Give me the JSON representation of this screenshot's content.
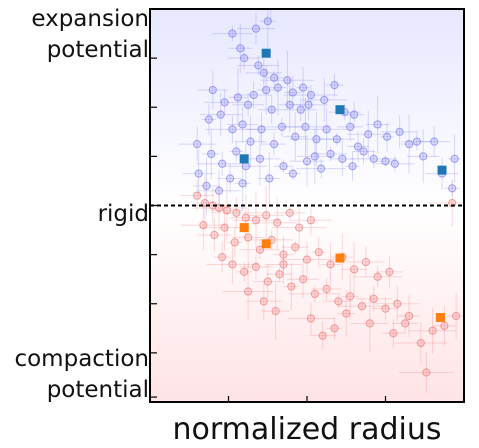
{
  "chart_data": {
    "type": "scatter",
    "xlabel": "normalized radius",
    "ylim": [
      -4,
      4
    ],
    "xlim": [
      0,
      4
    ],
    "x_ticks": [
      1,
      2,
      3
    ],
    "y_ticks": [
      -3.9,
      -3,
      -2,
      -1,
      0,
      1,
      2,
      3,
      4
    ],
    "y_annotations": {
      "top": [
        "expansion",
        "potential"
      ],
      "middle": "rigid",
      "bottom": [
        "compaction",
        "potential"
      ]
    },
    "reference_line": {
      "y": 0,
      "style": "dashed"
    },
    "series": [
      {
        "color": "#7b7bef",
        "marker": "open-circle",
        "points": [
          [
            1.3,
            4.4
          ],
          [
            1.44,
            4.3
          ],
          [
            1.54,
            4.1
          ],
          [
            1.5,
            3.75
          ],
          [
            1.35,
            3.6
          ],
          [
            1.15,
            3.2
          ],
          [
            1.05,
            3.5
          ],
          [
            1.2,
            3.0
          ],
          [
            1.38,
            2.85
          ],
          [
            1.45,
            2.7
          ],
          [
            1.58,
            2.6
          ],
          [
            1.75,
            2.55
          ],
          [
            1.82,
            2.3
          ],
          [
            2.05,
            2.25
          ],
          [
            0.8,
            2.35
          ],
          [
            0.95,
            2.1
          ],
          [
            1.12,
            2.2
          ],
          [
            1.25,
            2.05
          ],
          [
            1.32,
            2.25
          ],
          [
            1.48,
            2.35
          ],
          [
            1.55,
            1.95
          ],
          [
            1.63,
            2.4
          ],
          [
            1.78,
            2.05
          ],
          [
            1.92,
            1.95
          ],
          [
            2.02,
            2.05
          ],
          [
            2.22,
            2.15
          ],
          [
            2.35,
            2.45
          ],
          [
            2.48,
            1.9
          ],
          [
            0.75,
            1.75
          ],
          [
            0.9,
            1.85
          ],
          [
            1.05,
            1.55
          ],
          [
            1.18,
            1.65
          ],
          [
            1.28,
            1.3
          ],
          [
            1.42,
            1.55
          ],
          [
            1.58,
            1.25
          ],
          [
            1.68,
            1.6
          ],
          [
            1.85,
            1.4
          ],
          [
            1.98,
            1.6
          ],
          [
            2.12,
            1.35
          ],
          [
            2.25,
            1.55
          ],
          [
            2.38,
            1.35
          ],
          [
            2.55,
            1.6
          ],
          [
            2.65,
            1.2
          ],
          [
            2.78,
            1.45
          ],
          [
            2.9,
            1.65
          ],
          [
            3.02,
            1.4
          ],
          [
            3.18,
            1.5
          ],
          [
            3.3,
            1.25
          ],
          [
            3.48,
            1.0
          ],
          [
            0.6,
            1.25
          ],
          [
            0.78,
            1.05
          ],
          [
            0.92,
            0.85
          ],
          [
            1.1,
            1.1
          ],
          [
            1.22,
            0.8
          ],
          [
            1.4,
            0.95
          ],
          [
            1.52,
            0.55
          ],
          [
            1.7,
            0.8
          ],
          [
            1.82,
            0.65
          ],
          [
            2.0,
            0.9
          ],
          [
            2.18,
            0.75
          ],
          [
            2.3,
            1.05
          ],
          [
            2.45,
            0.95
          ],
          [
            2.58,
            0.8
          ],
          [
            2.72,
            1.1
          ],
          [
            2.85,
            0.95
          ],
          [
            3.0,
            0.9
          ],
          [
            3.12,
            0.85
          ],
          [
            3.4,
            1.3
          ],
          [
            3.72,
            0.65
          ],
          [
            3.88,
            0.95
          ],
          [
            0.62,
            0.65
          ],
          [
            0.72,
            0.4
          ],
          [
            0.88,
            0.3
          ],
          [
            1.02,
            0.55
          ],
          [
            1.18,
            0.45
          ],
          [
            3.85,
            0.35
          ],
          [
            2.6,
            1.85
          ],
          [
            1.95,
            2.4
          ],
          [
            3.62,
            1.3
          ],
          [
            2.1,
            1.0
          ]
        ]
      },
      {
        "color": "#f07878",
        "marker": "open-circle",
        "points": [
          [
            0.6,
            0.2
          ],
          [
            0.7,
            0.05
          ],
          [
            0.8,
            0.0
          ],
          [
            0.88,
            -0.05
          ],
          [
            0.98,
            -0.1
          ],
          [
            1.1,
            -0.15
          ],
          [
            1.22,
            -0.25
          ],
          [
            1.35,
            -0.3
          ],
          [
            1.48,
            -0.2
          ],
          [
            1.62,
            -0.35
          ],
          [
            1.78,
            -0.15
          ],
          [
            1.9,
            -0.45
          ],
          [
            2.05,
            -0.3
          ],
          [
            0.68,
            -0.4
          ],
          [
            0.82,
            -0.6
          ],
          [
            0.95,
            -0.45
          ],
          [
            1.08,
            -0.75
          ],
          [
            1.25,
            -0.65
          ],
          [
            1.4,
            -0.9
          ],
          [
            1.55,
            -0.7
          ],
          [
            1.7,
            -1.0
          ],
          [
            1.85,
            -0.85
          ],
          [
            2.0,
            -1.1
          ],
          [
            2.15,
            -0.95
          ],
          [
            2.3,
            -1.2
          ],
          [
            2.45,
            -1.05
          ],
          [
            2.6,
            -1.3
          ],
          [
            2.75,
            -1.15
          ],
          [
            2.9,
            -1.45
          ],
          [
            3.05,
            -1.35
          ],
          [
            1.05,
            -1.2
          ],
          [
            1.2,
            -1.35
          ],
          [
            1.35,
            -1.25
          ],
          [
            1.5,
            -1.55
          ],
          [
            1.65,
            -1.4
          ],
          [
            1.8,
            -1.65
          ],
          [
            1.95,
            -1.5
          ],
          [
            2.1,
            -1.8
          ],
          [
            2.25,
            -1.7
          ],
          [
            2.4,
            -1.95
          ],
          [
            2.55,
            -1.85
          ],
          [
            2.7,
            -2.05
          ],
          [
            2.85,
            -1.9
          ],
          [
            3.0,
            -2.1
          ],
          [
            3.15,
            -2.0
          ],
          [
            3.3,
            -2.25
          ],
          [
            1.25,
            -1.75
          ],
          [
            1.6,
            -2.15
          ],
          [
            2.05,
            -2.3
          ],
          [
            2.35,
            -2.5
          ],
          [
            2.5,
            -2.2
          ],
          [
            2.8,
            -2.4
          ],
          [
            3.1,
            -2.6
          ],
          [
            3.25,
            -2.4
          ],
          [
            3.45,
            -2.8
          ],
          [
            3.6,
            -2.55
          ],
          [
            3.75,
            -2.45
          ],
          [
            3.9,
            -2.25
          ],
          [
            3.52,
            -3.4
          ],
          [
            2.2,
            -2.65
          ],
          [
            1.7,
            -1.2
          ],
          [
            0.92,
            -1.05
          ],
          [
            3.85,
            0.05
          ],
          [
            1.45,
            -1.95
          ]
        ]
      },
      {
        "color": "#1f77b4",
        "marker": "filled-square",
        "points": [
          [
            1.48,
            3.1
          ],
          [
            2.42,
            1.95
          ],
          [
            1.2,
            0.95
          ],
          [
            3.72,
            0.72
          ]
        ]
      },
      {
        "color": "#ff7f0e",
        "marker": "filled-square",
        "points": [
          [
            1.2,
            -0.45
          ],
          [
            1.48,
            -0.78
          ],
          [
            2.42,
            -1.07
          ],
          [
            3.7,
            -2.28
          ]
        ]
      }
    ],
    "background": {
      "top_color": "#e7e7ff",
      "bottom_color": "#ffe3e6"
    },
    "grid": false
  }
}
